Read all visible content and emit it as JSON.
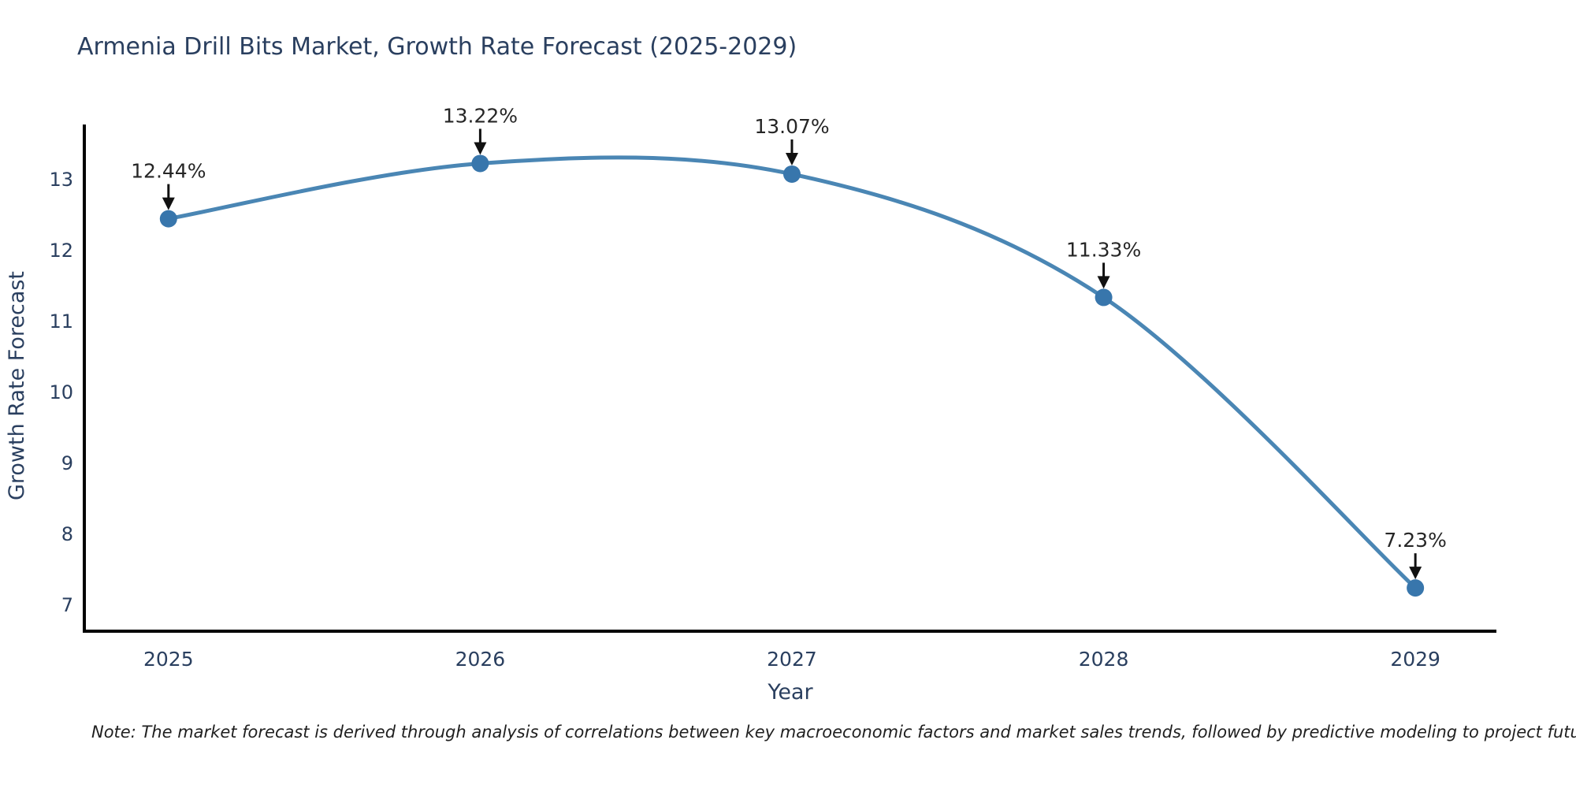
{
  "chart_data": {
    "type": "line",
    "title": "Armenia Drill Bits Market, Growth Rate Forecast (2025-2029)",
    "xlabel": "Year",
    "ylabel": "Growth Rate Forecast",
    "categories": [
      "2025",
      "2026",
      "2027",
      "2028",
      "2029"
    ],
    "x": [
      2025,
      2026,
      2027,
      2028,
      2029
    ],
    "series": [
      {
        "name": "Growth Rate Forecast",
        "values": [
          12.44,
          13.22,
          13.07,
          11.33,
          7.23
        ],
        "point_labels": [
          "12.44%",
          "13.22%",
          "13.07%",
          "11.33%",
          "7.23%"
        ]
      }
    ],
    "yticks": [
      7,
      8,
      9,
      10,
      11,
      12,
      13
    ],
    "xlim": [
      2024.73,
      2029.26
    ],
    "ylim": [
      6.62,
      13.77
    ],
    "grid": false,
    "legend": "none",
    "line_shape": "spline",
    "colors": {
      "line": "#4a86b4",
      "marker": "#3876ac",
      "axis": "#000000",
      "title_text": "#2a3f5f",
      "tick_text": "#2a3f5f",
      "annotation_text": "#262626",
      "arrow": "#111111",
      "background": "#ffffff"
    },
    "note": "Note: The market forecast is derived through analysis of correlations between key macroeconomic factors and market sales trends, followed by predictive modeling to project future sales"
  }
}
